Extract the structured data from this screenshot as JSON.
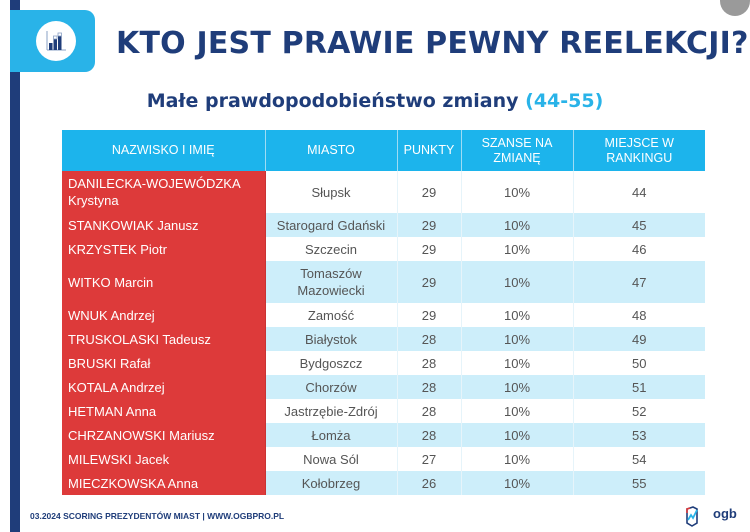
{
  "header": {
    "title": "KTO JEST PRAWIE PEWNY REELEKCJI?",
    "icon": "bar-chart-icon"
  },
  "subtitle": {
    "text": "Małe prawdopodobieństwo zmiany",
    "range": "(44-55)"
  },
  "table": {
    "columns": [
      "NAZWISKO I IMIĘ",
      "MIASTO",
      "PUNKTY",
      "SZANSE NA ZMIANĘ",
      "MIEJSCE W RANKINGU"
    ],
    "rows": [
      {
        "name": "DANILECKA-WOJEWÓDZKA Krystyna",
        "city": "Słupsk",
        "points": "29",
        "chance": "10%",
        "rank": "44"
      },
      {
        "name": "STANKOWIAK Janusz",
        "city": "Starogard Gdański",
        "points": "29",
        "chance": "10%",
        "rank": "45"
      },
      {
        "name": "KRZYSTEK Piotr",
        "city": "Szczecin",
        "points": "29",
        "chance": "10%",
        "rank": "46"
      },
      {
        "name": "WITKO Marcin",
        "city": "Tomaszów Mazowiecki",
        "points": "29",
        "chance": "10%",
        "rank": "47"
      },
      {
        "name": "WNUK Andrzej",
        "city": "Zamość",
        "points": "29",
        "chance": "10%",
        "rank": "48"
      },
      {
        "name": "TRUSKOLASKI Tadeusz",
        "city": "Białystok",
        "points": "28",
        "chance": "10%",
        "rank": "49"
      },
      {
        "name": "BRUSKI Rafał",
        "city": "Bydgoszcz",
        "points": "28",
        "chance": "10%",
        "rank": "50"
      },
      {
        "name": "KOTALA Andrzej",
        "city": "Chorzów",
        "points": "28",
        "chance": "10%",
        "rank": "51"
      },
      {
        "name": "HETMAN Anna",
        "city": "Jastrzębie-Zdrój",
        "points": "28",
        "chance": "10%",
        "rank": "52"
      },
      {
        "name": "CHRZANOWSKI Mariusz",
        "city": "Łomża",
        "points": "28",
        "chance": "10%",
        "rank": "53"
      },
      {
        "name": "MILEWSKI Jacek",
        "city": "Nowa Sól",
        "points": "27",
        "chance": "10%",
        "rank": "54"
      },
      {
        "name": "MIECZKOWSKA Anna",
        "city": "Kołobrzeg",
        "points": "26",
        "chance": "10%",
        "rank": "55"
      }
    ]
  },
  "footer": {
    "text": "03.2024 SCORING PREZYDENTÓW MIAST | WWW.OGBPRO.PL",
    "logo_text": "ogb"
  },
  "colors": {
    "navy": "#1f3d7a",
    "accent_blue": "#29b3e8",
    "header_blue": "#1cb4ec",
    "name_red": "#dd3a3a",
    "row_alt": "#cdeefa"
  }
}
